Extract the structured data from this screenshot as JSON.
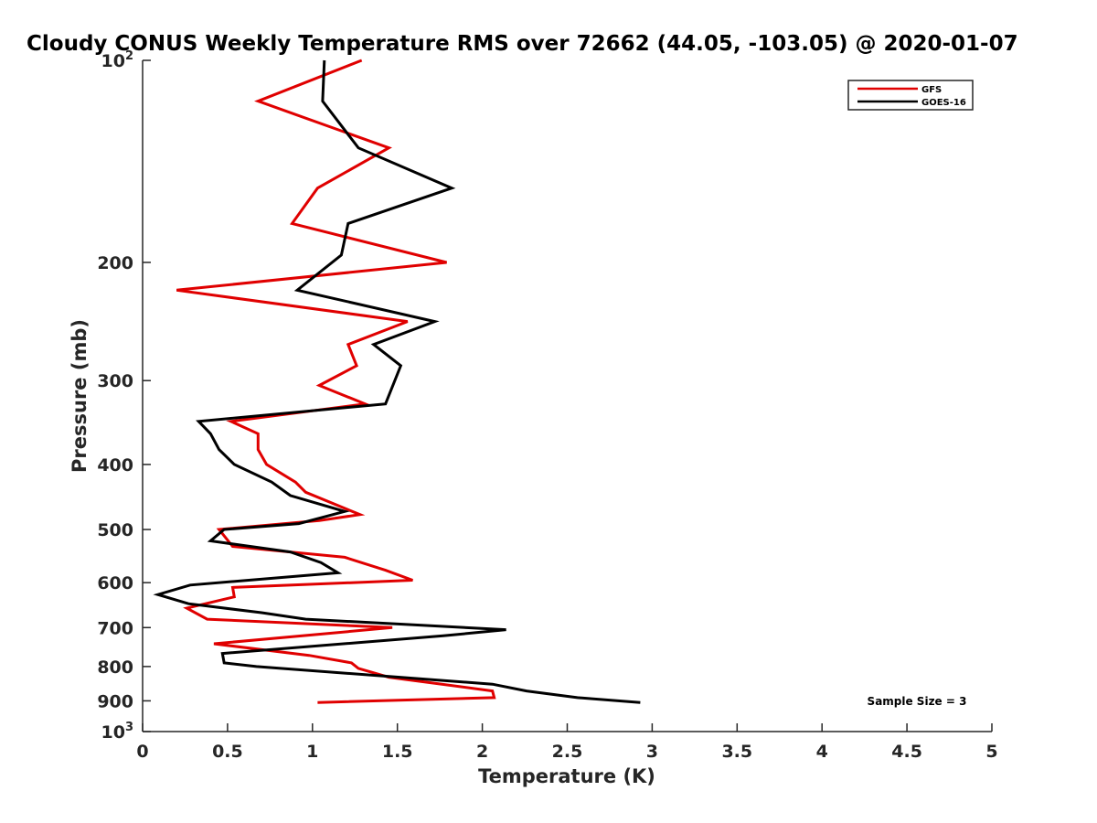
{
  "chart_data": {
    "type": "line",
    "title": "Cloudy CONUS Weekly Temperature RMS over 72662 (44.05, -103.05) @ 2020-01-07",
    "xlabel": "Temperature (K)",
    "ylabel": "Pressure (mb)",
    "xlim": [
      0,
      5
    ],
    "ylim": [
      100,
      1000
    ],
    "y_scale": "log",
    "y_reversed": true,
    "x_ticks": [
      0,
      0.5,
      1,
      1.5,
      2,
      2.5,
      3,
      3.5,
      4,
      4.5,
      5
    ],
    "x_tick_labels": [
      "0",
      "0.5",
      "1",
      "1.5",
      "2",
      "2.5",
      "3",
      "3.5",
      "4",
      "4.5",
      "5"
    ],
    "y_ticks": [
      100,
      200,
      300,
      400,
      500,
      600,
      700,
      800,
      900,
      1000
    ],
    "y_tick_labels": [
      {
        "base": "10",
        "exp": "2"
      },
      {
        "base": "200",
        "exp": ""
      },
      {
        "base": "300",
        "exp": ""
      },
      {
        "base": "400",
        "exp": ""
      },
      {
        "base": "500",
        "exp": ""
      },
      {
        "base": "600",
        "exp": ""
      },
      {
        "base": "700",
        "exp": ""
      },
      {
        "base": "800",
        "exp": ""
      },
      {
        "base": "900",
        "exp": ""
      },
      {
        "base": "10",
        "exp": "3"
      }
    ],
    "grid": false,
    "legend_position": "top-right",
    "annotation": "Sample Size = 3",
    "series": [
      {
        "name": "GFS",
        "color": "#e00000",
        "points": [
          [
            1.29,
            100
          ],
          [
            0.68,
            115
          ],
          [
            1.45,
            135
          ],
          [
            1.03,
            155
          ],
          [
            0.88,
            175
          ],
          [
            1.79,
            200
          ],
          [
            0.2,
            220
          ],
          [
            1.56,
            245
          ],
          [
            1.21,
            265
          ],
          [
            1.26,
            285
          ],
          [
            1.04,
            305
          ],
          [
            1.31,
            325
          ],
          [
            0.52,
            345
          ],
          [
            0.68,
            360
          ],
          [
            0.68,
            380
          ],
          [
            0.73,
            400
          ],
          [
            0.9,
            425
          ],
          [
            0.96,
            440
          ],
          [
            1.28,
            475
          ],
          [
            1.04,
            485
          ],
          [
            0.45,
            500
          ],
          [
            0.53,
            530
          ],
          [
            1.19,
            550
          ],
          [
            1.43,
            575
          ],
          [
            1.59,
            595
          ],
          [
            0.53,
            610
          ],
          [
            0.54,
            630
          ],
          [
            0.26,
            655
          ],
          [
            0.38,
            680
          ],
          [
            1.47,
            700
          ],
          [
            0.42,
            740
          ],
          [
            0.98,
            770
          ],
          [
            1.23,
            790
          ],
          [
            1.27,
            805
          ],
          [
            1.45,
            830
          ],
          [
            2.06,
            870
          ],
          [
            2.07,
            890
          ],
          [
            1.03,
            905
          ]
        ]
      },
      {
        "name": "GOES-16",
        "color": "#000000",
        "points": [
          [
            1.07,
            100
          ],
          [
            1.06,
            115
          ],
          [
            1.27,
            135
          ],
          [
            1.82,
            155
          ],
          [
            1.21,
            175
          ],
          [
            1.17,
            195
          ],
          [
            0.91,
            220
          ],
          [
            1.72,
            245
          ],
          [
            1.36,
            265
          ],
          [
            1.52,
            285
          ],
          [
            1.43,
            325
          ],
          [
            0.33,
            345
          ],
          [
            0.4,
            360
          ],
          [
            0.45,
            380
          ],
          [
            0.54,
            400
          ],
          [
            0.76,
            425
          ],
          [
            0.87,
            445
          ],
          [
            1.19,
            470
          ],
          [
            0.92,
            490
          ],
          [
            0.48,
            500
          ],
          [
            0.4,
            520
          ],
          [
            0.87,
            540
          ],
          [
            1.05,
            560
          ],
          [
            1.15,
            580
          ],
          [
            0.28,
            605
          ],
          [
            0.09,
            625
          ],
          [
            0.27,
            645
          ],
          [
            0.7,
            665
          ],
          [
            0.96,
            680
          ],
          [
            2.14,
            705
          ],
          [
            1.77,
            720
          ],
          [
            0.47,
            765
          ],
          [
            0.48,
            790
          ],
          [
            0.67,
            800
          ],
          [
            2.06,
            850
          ],
          [
            2.26,
            870
          ],
          [
            2.56,
            890
          ],
          [
            2.93,
            905
          ]
        ]
      }
    ]
  }
}
